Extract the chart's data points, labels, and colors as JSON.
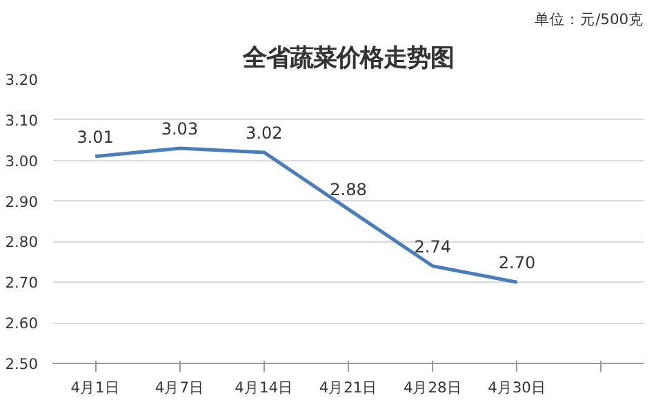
{
  "chart_data": {
    "type": "line",
    "title": "全省蔬菜价格走势图",
    "annotations": [
      "单位：元/500克"
    ],
    "categories": [
      "4月1日",
      "4月7日",
      "4月14日",
      "4月21日",
      "4月28日",
      "4月30日",
      null
    ],
    "series": [
      {
        "color": "#4a7ebb",
        "values": [
          3.01,
          3.03,
          3.02,
          2.88,
          2.74,
          2.7,
          null
        ],
        "value_labels": [
          "3.01",
          "3.03",
          "3.02",
          "2.88",
          "2.74",
          "2.70",
          null
        ]
      }
    ],
    "ylim": [
      2.5,
      3.2
    ],
    "yticks": [
      {
        "value": 2.5,
        "label": "2.50"
      },
      {
        "value": 2.6,
        "label": "2.60"
      },
      {
        "value": 2.7,
        "label": "2.70"
      },
      {
        "value": 2.8,
        "label": "2.80"
      },
      {
        "value": 2.9,
        "label": "2.90"
      },
      {
        "value": 3.0,
        "label": "3.00"
      },
      {
        "value": 3.1,
        "label": "3.10"
      },
      {
        "value": 3.2,
        "label": "3.20"
      }
    ],
    "grid": "y",
    "marker": "none",
    "line_style": "solid"
  }
}
